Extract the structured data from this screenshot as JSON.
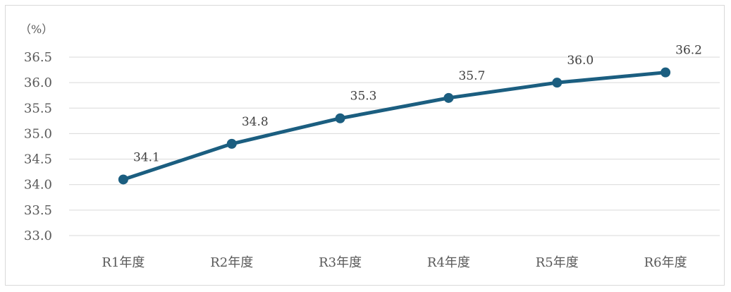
{
  "chart_data": {
    "type": "line",
    "title": "",
    "xlabel": "",
    "ylabel": "",
    "unit_label": "（%）",
    "categories": [
      "R1年度",
      "R2年度",
      "R3年度",
      "R4年度",
      "R5年度",
      "R6年度"
    ],
    "series": [
      {
        "values": [
          34.1,
          34.8,
          35.3,
          35.7,
          36.0,
          36.2
        ],
        "labels": [
          "34.1",
          "34.8",
          "35.3",
          "35.7",
          "36.0",
          "36.2"
        ],
        "color": "#1b5e80"
      }
    ],
    "ylim": [
      33.0,
      36.5
    ],
    "yticks": [
      33.0,
      33.5,
      34.0,
      34.5,
      35.0,
      35.5,
      36.0,
      36.5
    ],
    "ytick_labels": [
      "33.0",
      "33.5",
      "34.0",
      "34.5",
      "35.0",
      "35.5",
      "36.0",
      "36.5"
    ],
    "grid": true,
    "legend": "none"
  }
}
